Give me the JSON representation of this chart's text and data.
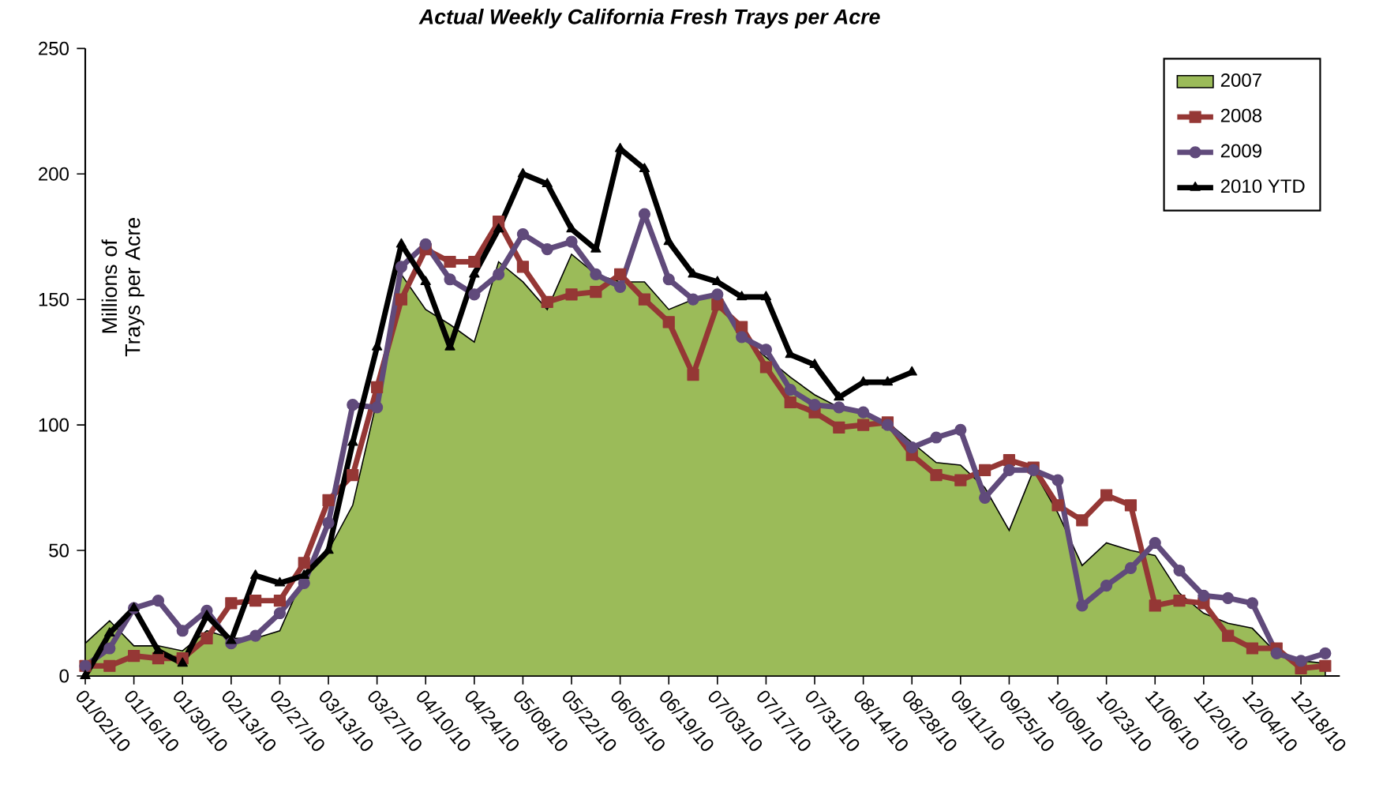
{
  "chart_data": {
    "type": "line",
    "title": "Actual Weekly California Fresh Trays per Acre",
    "ylabel": "Millions of Trays per Acre",
    "categories": [
      "01/02/10",
      null,
      "01/16/10",
      null,
      "01/30/10",
      null,
      "02/13/10",
      null,
      "02/27/10",
      null,
      "03/13/10",
      null,
      "03/27/10",
      null,
      "04/10/10",
      null,
      "04/24/10",
      null,
      "05/08/10",
      null,
      "05/22/10",
      null,
      "06/05/10",
      null,
      "06/19/10",
      null,
      "07/03/10",
      null,
      "07/17/10",
      null,
      "07/31/10",
      null,
      "08/14/10",
      null,
      "08/28/10",
      null,
      "09/11/10",
      null,
      "09/25/10",
      null,
      "10/09/10",
      null,
      "10/23/10",
      null,
      "11/06/10",
      null,
      "11/20/10",
      null,
      "12/04/10",
      null,
      "12/18/10",
      null
    ],
    "series": [
      {
        "name": "2007",
        "type": "area",
        "color": "#9bbb59",
        "marker": "none",
        "values": [
          13,
          22,
          12,
          12,
          10,
          18,
          15,
          15,
          18,
          40,
          50,
          68,
          110,
          160,
          146,
          140,
          133,
          165,
          157,
          146,
          168,
          160,
          157,
          157,
          146,
          150,
          152,
          135,
          127,
          119,
          112,
          107,
          105,
          101,
          93,
          85,
          84,
          75,
          58,
          82,
          65,
          44,
          53,
          50,
          48,
          33,
          25,
          21,
          19,
          9,
          6,
          5
        ]
      },
      {
        "name": "2008",
        "color": "#953735",
        "marker": "square",
        "values": [
          4,
          4,
          8,
          7,
          7,
          15,
          29,
          30,
          30,
          45,
          70,
          80,
          115,
          150,
          170,
          165,
          165,
          181,
          163,
          149,
          152,
          153,
          160,
          150,
          141,
          120,
          148,
          139,
          123,
          109,
          105,
          99,
          100,
          101,
          88,
          80,
          78,
          82,
          86,
          83,
          68,
          62,
          72,
          68,
          28,
          30,
          29,
          16,
          11,
          11,
          3,
          4
        ]
      },
      {
        "name": "2009",
        "color": "#604a7b",
        "marker": "circle",
        "values": [
          4,
          11,
          27,
          30,
          18,
          26,
          13,
          16,
          25,
          37,
          61,
          108,
          107,
          163,
          172,
          158,
          152,
          160,
          176,
          170,
          173,
          160,
          155,
          184,
          158,
          150,
          152,
          135,
          130,
          114,
          108,
          107,
          105,
          100,
          91,
          95,
          98,
          71,
          82,
          82,
          78,
          28,
          36,
          43,
          53,
          42,
          32,
          31,
          29,
          9,
          6,
          9
        ]
      },
      {
        "name": "2010 YTD",
        "color": "#000000",
        "marker": "triangle",
        "values": [
          0,
          17,
          27,
          10,
          5,
          24,
          14,
          40,
          37,
          40,
          50,
          93,
          131,
          172,
          157,
          131,
          160,
          178,
          200,
          196,
          178,
          170,
          210,
          202,
          173,
          160,
          157,
          151,
          151,
          128,
          124,
          111,
          117,
          117,
          121,
          null,
          null,
          null,
          null,
          null,
          null,
          null,
          null,
          null,
          null,
          null,
          null,
          null,
          null,
          null,
          null,
          null
        ]
      }
    ],
    "ylim": [
      0,
      250
    ],
    "yticks": [
      0,
      50,
      100,
      150,
      200,
      250
    ],
    "grid": false,
    "legend": "top right"
  }
}
